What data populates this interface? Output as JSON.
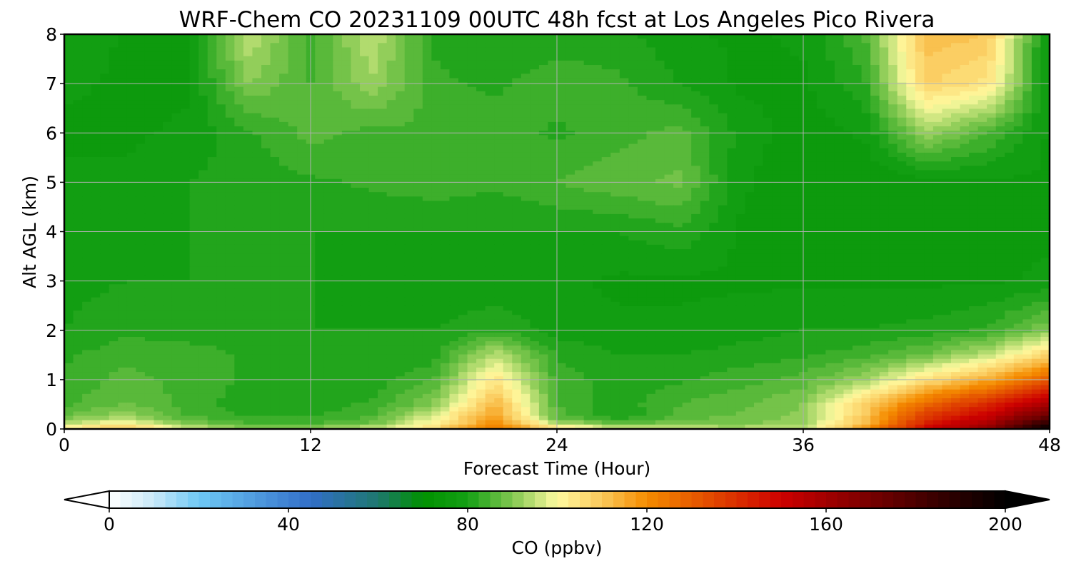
{
  "chart_data": {
    "type": "heatmap",
    "subtype": "filled-contour",
    "title": "WRF-Chem CO  20231109 00UTC 48h fcst at Los Angeles Pico Rivera",
    "xlabel": "Forecast Time (Hour)",
    "ylabel": "Alt AGL (km)",
    "xlim": [
      0,
      48
    ],
    "ylim": [
      0,
      8
    ],
    "x_ticks": [
      "0",
      "12",
      "24",
      "36",
      "48"
    ],
    "y_ticks": [
      "0",
      "1",
      "2",
      "3",
      "4",
      "5",
      "6",
      "7",
      "8"
    ],
    "grid": true,
    "colorbar": {
      "label": "CO  (ppbv)",
      "range": [
        0,
        200
      ],
      "ticks": [
        "0",
        "40",
        "80",
        "120",
        "160",
        "200"
      ],
      "extend": "both",
      "orientation": "horizontal",
      "position": "bottom"
    },
    "x": [
      0,
      3,
      6,
      9,
      12,
      15,
      18,
      21,
      24,
      27,
      30,
      33,
      36,
      39,
      42,
      45,
      48
    ],
    "y": [
      0,
      0.1,
      0.25,
      0.5,
      1,
      1.5,
      2,
      3,
      4,
      5,
      6,
      7,
      8
    ],
    "z": [
      [
        105,
        112,
        98,
        92,
        93,
        97,
        106,
        125,
        108,
        98,
        95,
        95,
        96,
        118,
        150,
        165,
        200
      ],
      [
        95,
        102,
        90,
        85,
        85,
        88,
        102,
        120,
        95,
        87,
        90,
        89,
        92,
        112,
        145,
        160,
        190
      ],
      [
        88,
        92,
        85,
        82,
        82,
        85,
        98,
        117,
        86,
        80,
        86,
        88,
        91,
        110,
        138,
        152,
        175
      ],
      [
        84,
        88,
        84,
        81,
        81,
        83,
        90,
        113,
        85,
        81,
        85,
        87,
        90,
        108,
        128,
        142,
        160
      ],
      [
        83,
        86,
        84,
        82,
        80,
        81,
        85,
        104,
        84,
        81,
        82,
        84,
        86,
        92,
        105,
        115,
        130
      ],
      [
        82,
        84,
        84,
        82,
        80,
        80,
        81,
        95,
        82,
        80,
        80,
        81,
        82,
        84,
        88,
        95,
        108
      ],
      [
        80,
        82,
        81,
        81,
        80,
        80,
        80,
        82,
        79,
        78,
        78,
        79,
        80,
        80,
        81,
        83,
        90
      ],
      [
        79,
        80,
        80,
        80,
        80,
        79,
        78,
        78,
        78,
        77,
        77,
        77,
        77,
        77,
        77,
        77,
        78
      ],
      [
        79,
        79,
        80,
        80,
        80,
        80,
        80,
        80,
        80,
        80,
        82,
        77,
        76,
        76,
        77,
        77,
        77
      ],
      [
        78,
        78,
        80,
        81,
        82,
        83,
        84,
        83,
        85,
        87,
        88,
        78,
        75,
        75,
        76,
        77,
        77
      ],
      [
        77,
        77,
        78,
        82,
        86,
        84,
        85,
        84,
        82,
        84,
        86,
        79,
        76,
        78,
        92,
        85,
        77
      ],
      [
        78,
        77,
        77,
        90,
        85,
        92,
        83,
        82,
        84,
        83,
        80,
        77,
        77,
        82,
        108,
        104,
        76
      ],
      [
        80,
        77,
        77,
        95,
        84,
        95,
        82,
        80,
        81,
        81,
        78,
        77,
        78,
        85,
        112,
        110,
        75
      ]
    ]
  }
}
